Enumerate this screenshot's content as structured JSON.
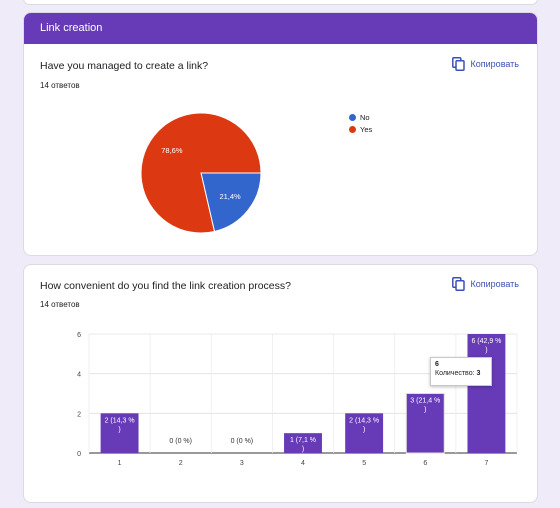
{
  "section": {
    "title": "Link creation"
  },
  "copy_label": "Копировать",
  "questions": [
    {
      "title": "Have you managed to create a link?",
      "count": "14 ответов",
      "legend": [
        {
          "label": "No",
          "color": "#3366cc"
        },
        {
          "label": "Yes",
          "color": "#dc3912"
        }
      ]
    },
    {
      "title": "How convenient do you find the link creation process?",
      "count": "14 ответов",
      "tooltip": {
        "title": "6",
        "label": "Количество:",
        "value": "3"
      }
    }
  ],
  "chart_data": [
    {
      "type": "pie",
      "categories": [
        "No",
        "Yes"
      ],
      "values": [
        21.4,
        78.6
      ],
      "labels": [
        "21,4%",
        "78,6%"
      ],
      "colors": [
        "#3366cc",
        "#dc3912"
      ],
      "legend_position": "right"
    },
    {
      "type": "bar",
      "categories": [
        "1",
        "2",
        "3",
        "4",
        "5",
        "6",
        "7"
      ],
      "values": [
        2,
        0,
        0,
        1,
        2,
        3,
        6
      ],
      "labels": [
        "2 (14,3 %)",
        "0 (0 %)",
        "0 (0 %)",
        "1 (7,1 %)",
        "2 (14,3 %)",
        "3 (21,4 %)",
        "6 (42,9 %)"
      ],
      "yticks": [
        0,
        2,
        4,
        6
      ],
      "ylim": [
        0,
        6
      ],
      "color": "#673ab7"
    }
  ]
}
